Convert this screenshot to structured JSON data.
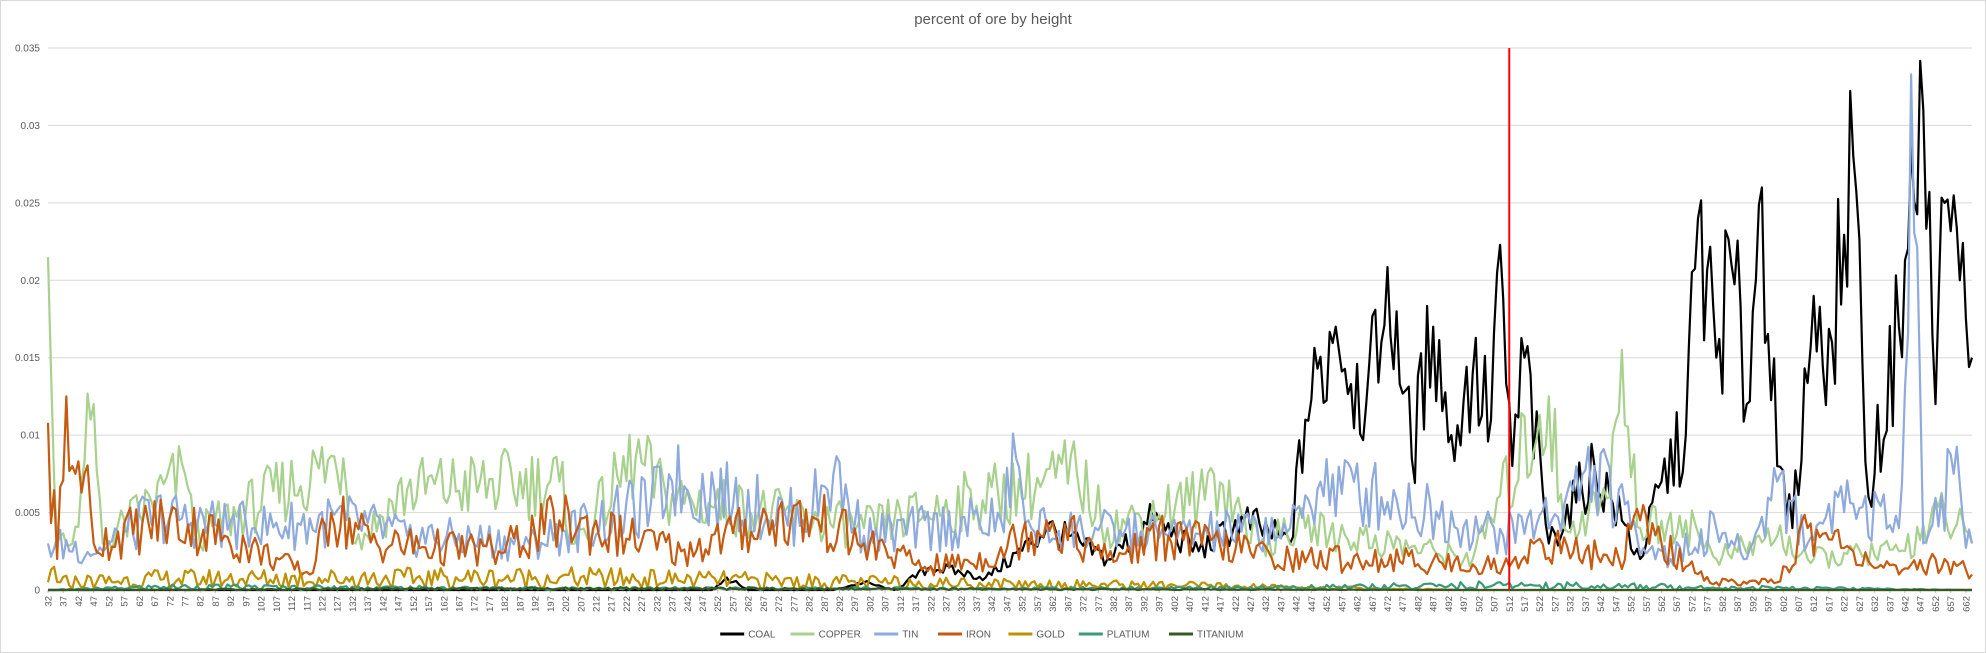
{
  "chart_data": {
    "type": "line",
    "title": "percent of ore by height",
    "xlabel": "",
    "ylabel": "",
    "x_start": 32,
    "x_end": 664,
    "x_tick_labels_shown_every": 5,
    "ylim": [
      0,
      0.035
    ],
    "y_ticks": [
      "0",
      "0.005",
      "0.01",
      "0.015",
      "0.02",
      "0.025",
      "0.03",
      "0.035"
    ],
    "grid": "horizontal",
    "legend_position": "bottom",
    "reference_line": {
      "x": 512,
      "color": "#ff0000"
    },
    "series": [
      {
        "name": "COAL",
        "color": "#000000",
        "anchors": [
          [
            32,
            0
          ],
          [
            250,
            0
          ],
          [
            255,
            0.0008
          ],
          [
            262,
            0
          ],
          [
            290,
            0
          ],
          [
            300,
            0.0005
          ],
          [
            310,
            0
          ],
          [
            322,
            0.0015
          ],
          [
            340,
            0.0008
          ],
          [
            355,
            0.003
          ],
          [
            360,
            0.004
          ],
          [
            380,
            0.002
          ],
          [
            395,
            0.0045
          ],
          [
            410,
            0.0025
          ],
          [
            425,
            0.0045
          ],
          [
            440,
            0.003
          ],
          [
            445,
            0.011
          ],
          [
            455,
            0.017
          ],
          [
            465,
            0.012
          ],
          [
            470,
            0.016
          ],
          [
            475,
            0.018
          ],
          [
            480,
            0.0085
          ],
          [
            487,
            0.017
          ],
          [
            493,
            0.01
          ],
          [
            500,
            0.014
          ],
          [
            506,
            0.011
          ],
          [
            508,
            0.0205
          ],
          [
            513,
            0.008
          ],
          [
            517,
            0.015
          ],
          [
            525,
            0.003
          ],
          [
            540,
            0.008
          ],
          [
            555,
            0.002
          ],
          [
            562,
            0.007
          ],
          [
            570,
            0.01
          ],
          [
            574,
            0.024
          ],
          [
            580,
            0.015
          ],
          [
            585,
            0.021
          ],
          [
            590,
            0.012
          ],
          [
            595,
            0.026
          ],
          [
            600,
            0.008
          ],
          [
            605,
            0.004
          ],
          [
            612,
            0.019
          ],
          [
            618,
            0.016
          ],
          [
            625,
            0.028
          ],
          [
            630,
            0.006
          ],
          [
            640,
            0.017
          ],
          [
            648,
            0.031
          ],
          [
            652,
            0.012
          ],
          [
            655,
            0.025
          ],
          [
            660,
            0.02
          ],
          [
            664,
            0.015
          ]
        ],
        "amp": 0.3
      },
      {
        "name": "COPPER",
        "color": "#a9d18e",
        "anchors": [
          [
            32,
            0.0215
          ],
          [
            35,
            0.003
          ],
          [
            40,
            0.003
          ],
          [
            46,
            0.011
          ],
          [
            50,
            0.003
          ],
          [
            77,
            0.0075
          ],
          [
            80,
            0.0035
          ],
          [
            129,
            0.0085
          ],
          [
            133,
            0.003
          ],
          [
            150,
            0.0065
          ],
          [
            200,
            0.007
          ],
          [
            205,
            0.003
          ],
          [
            225,
            0.0085
          ],
          [
            235,
            0.006
          ],
          [
            300,
            0.004
          ],
          [
            370,
            0.0075
          ],
          [
            380,
            0.004
          ],
          [
            410,
            0.006
          ],
          [
            415,
            0.0075
          ],
          [
            430,
            0.003
          ],
          [
            445,
            0.004
          ],
          [
            500,
            0.002
          ],
          [
            525,
            0.0125
          ],
          [
            530,
            0.004
          ],
          [
            545,
            0.006
          ],
          [
            549,
            0.0155
          ],
          [
            555,
            0.004
          ],
          [
            570,
            0.0045
          ],
          [
            580,
            0.002
          ],
          [
            600,
            0.0035
          ],
          [
            610,
            0.002
          ],
          [
            640,
            0.0025
          ],
          [
            655,
            0.005
          ],
          [
            664,
            0.003
          ]
        ],
        "amp": 0.35
      },
      {
        "name": "TIN",
        "color": "#8faadc",
        "anchors": [
          [
            32,
            0.003
          ],
          [
            50,
            0.0025
          ],
          [
            67,
            0.005
          ],
          [
            75,
            0.0045
          ],
          [
            100,
            0.004
          ],
          [
            130,
            0.0045
          ],
          [
            150,
            0.0035
          ],
          [
            190,
            0.003
          ],
          [
            230,
            0.0055
          ],
          [
            237,
            0.007
          ],
          [
            280,
            0.0045
          ],
          [
            290,
            0.0075
          ],
          [
            300,
            0.0035
          ],
          [
            345,
            0.0045
          ],
          [
            350,
            0.0085
          ],
          [
            355,
            0.004
          ],
          [
            400,
            0.0035
          ],
          [
            440,
            0.004
          ],
          [
            450,
            0.007
          ],
          [
            470,
            0.006
          ],
          [
            510,
            0.0035
          ],
          [
            530,
            0.0055
          ],
          [
            540,
            0.008
          ],
          [
            552,
            0.004
          ],
          [
            565,
            0.002
          ],
          [
            580,
            0.004
          ],
          [
            590,
            0.002
          ],
          [
            600,
            0.007
          ],
          [
            610,
            0.003
          ],
          [
            620,
            0.006
          ],
          [
            640,
            0.004
          ],
          [
            644,
            0.0333
          ],
          [
            648,
            0.003
          ],
          [
            658,
            0.0075
          ],
          [
            664,
            0.003
          ]
        ],
        "amp": 0.4
      },
      {
        "name": "IRON",
        "color": "#c55a11",
        "anchors": [
          [
            32,
            0.0108
          ],
          [
            35,
            0.002
          ],
          [
            38,
            0.0125
          ],
          [
            40,
            0.008
          ],
          [
            44,
            0.0075
          ],
          [
            47,
            0.003
          ],
          [
            70,
            0.0045
          ],
          [
            90,
            0.0035
          ],
          [
            118,
            0.001
          ],
          [
            125,
            0.005
          ],
          [
            140,
            0.003
          ],
          [
            180,
            0.0025
          ],
          [
            200,
            0.0045
          ],
          [
            240,
            0.0025
          ],
          [
            270,
            0.0045
          ],
          [
            285,
            0.0045
          ],
          [
            300,
            0.003
          ],
          [
            320,
            0.0015
          ],
          [
            340,
            0.002
          ],
          [
            360,
            0.0045
          ],
          [
            380,
            0.002
          ],
          [
            400,
            0.0035
          ],
          [
            440,
            0.002
          ],
          [
            470,
            0.002
          ],
          [
            512,
            0.0015
          ],
          [
            520,
            0.003
          ],
          [
            548,
            0.002
          ],
          [
            555,
            0.0045
          ],
          [
            570,
            0.0015
          ],
          [
            580,
            0.0005
          ],
          [
            600,
            0.0005
          ],
          [
            610,
            0.004
          ],
          [
            625,
            0.0025
          ],
          [
            640,
            0.001
          ],
          [
            655,
            0.002
          ],
          [
            664,
            0.001
          ]
        ],
        "amp": 0.45
      },
      {
        "name": "GOLD",
        "color": "#bf9000",
        "anchors": [
          [
            32,
            0.0005
          ],
          [
            34,
            0.0015
          ],
          [
            36,
            0.0005
          ],
          [
            70,
            0.0007
          ],
          [
            200,
            0.0008
          ],
          [
            300,
            0.0005
          ],
          [
            400,
            0.0003
          ],
          [
            500,
            0
          ],
          [
            664,
            0
          ]
        ],
        "amp": 0.9
      },
      {
        "name": "PLATIUM",
        "color": "#3a9a78",
        "anchors": [
          [
            32,
            0
          ],
          [
            70,
            0.0002
          ],
          [
            200,
            0.0001
          ],
          [
            400,
            0.0001
          ],
          [
            515,
            0.0003
          ],
          [
            664,
            0
          ]
        ],
        "amp": 1.0
      },
      {
        "name": "TITANIUM",
        "color": "#385723",
        "anchors": [
          [
            32,
            0
          ],
          [
            200,
            0.0001
          ],
          [
            500,
            0
          ],
          [
            664,
            0
          ]
        ],
        "amp": 1.0
      }
    ]
  }
}
